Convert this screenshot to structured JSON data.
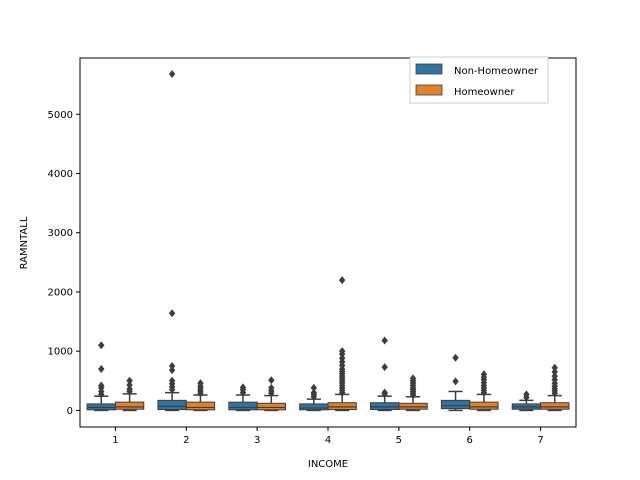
{
  "chart_data": {
    "type": "boxplot",
    "title": "",
    "xlabel": "INCOME",
    "ylabel": "RAMNTALL",
    "categories": [
      "1",
      "2",
      "3",
      "4",
      "5",
      "6",
      "7"
    ],
    "ylim": [
      -280,
      5950
    ],
    "yticks": [
      0,
      1000,
      2000,
      3000,
      4000,
      5000
    ],
    "grid": false,
    "legend_position": "top-right",
    "colors": {
      "Non-Homeowner": "#3274a1",
      "Homeowner": "#e1812c",
      "line": "#3d3d3d"
    },
    "series": [
      {
        "name": "Non-Homeowner",
        "boxes": [
          {
            "q1": 10,
            "median": 50,
            "q3": 110,
            "whisker_low": 0,
            "whisker_high": 240,
            "outliers": [
              270,
              320,
              380,
              420,
              700,
              1100
            ]
          },
          {
            "q1": 15,
            "median": 70,
            "q3": 170,
            "whisker_low": 0,
            "whisker_high": 300,
            "outliers": [
              350,
              400,
              450,
              500,
              680,
              750,
              1640,
              5680
            ]
          },
          {
            "q1": 10,
            "median": 50,
            "q3": 140,
            "whisker_low": 0,
            "whisker_high": 260,
            "outliers": [
              300,
              350,
              390
            ]
          },
          {
            "q1": 10,
            "median": 40,
            "q3": 110,
            "whisker_low": 0,
            "whisker_high": 190,
            "outliers": [
              230,
              270,
              300,
              380
            ]
          },
          {
            "q1": 15,
            "median": 60,
            "q3": 130,
            "whisker_low": 0,
            "whisker_high": 240,
            "outliers": [
              280,
              300,
              730,
              1180
            ]
          },
          {
            "q1": 30,
            "median": 80,
            "q3": 170,
            "whisker_low": 0,
            "whisker_high": 320,
            "outliers": [
              490,
              890
            ]
          },
          {
            "q1": 20,
            "median": 60,
            "q3": 110,
            "whisker_low": 0,
            "whisker_high": 170,
            "outliers": [
              220,
              270
            ]
          }
        ]
      },
      {
        "name": "Homeowner",
        "boxes": [
          {
            "q1": 20,
            "median": 60,
            "q3": 140,
            "whisker_low": 0,
            "whisker_high": 280,
            "outliers": [
              320,
              360,
              430,
              500
            ]
          },
          {
            "q1": 10,
            "median": 50,
            "q3": 140,
            "whisker_low": 0,
            "whisker_high": 260,
            "outliers": [
              290,
              330,
              370,
              410,
              460
            ]
          },
          {
            "q1": 10,
            "median": 50,
            "q3": 120,
            "whisker_low": 0,
            "whisker_high": 250,
            "outliers": [
              290,
              330,
              380,
              510
            ]
          },
          {
            "q1": 15,
            "median": 60,
            "q3": 130,
            "whisker_low": 0,
            "whisker_high": 270,
            "outliers": [
              300,
              340,
              380,
              420,
              460,
              500,
              540,
              580,
              620,
              660,
              700,
              760,
              820,
              880,
              950,
              1000,
              2200
            ]
          },
          {
            "q1": 20,
            "median": 60,
            "q3": 120,
            "whisker_low": 0,
            "whisker_high": 230,
            "outliers": [
              260,
              290,
              320,
              350,
              380,
              420,
              460,
              500,
              540
            ]
          },
          {
            "q1": 20,
            "median": 60,
            "q3": 140,
            "whisker_low": 0,
            "whisker_high": 270,
            "outliers": [
              300,
              340,
              380,
              420,
              470,
              520,
              560,
              610
            ]
          },
          {
            "q1": 20,
            "median": 60,
            "q3": 130,
            "whisker_low": 0,
            "whisker_high": 250,
            "outliers": [
              290,
              330,
              370,
              410,
              460,
              520,
              580,
              650,
              720
            ]
          }
        ]
      }
    ]
  }
}
